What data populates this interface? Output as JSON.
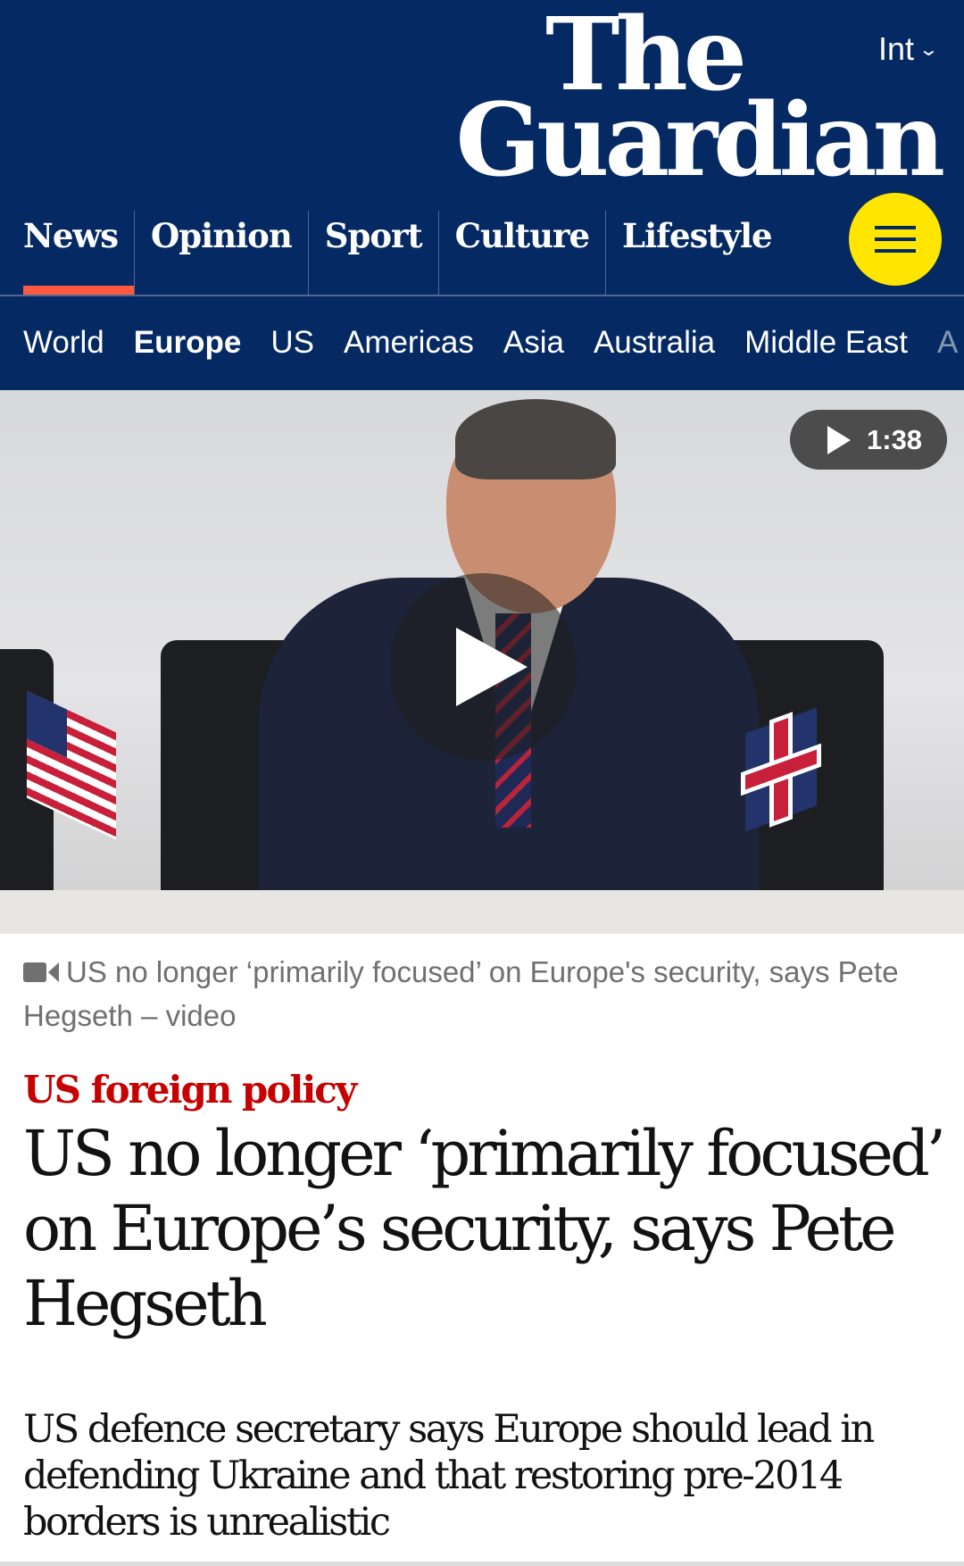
{
  "header": {
    "edition": "Int",
    "logo": "The Guardian",
    "logo_line1": "The",
    "logo_line2": "Guardian",
    "menu_icon": "hamburger-menu-icon",
    "pillars": [
      {
        "label": "News",
        "active": true
      },
      {
        "label": "Opinion"
      },
      {
        "label": "Sport"
      },
      {
        "label": "Culture"
      },
      {
        "label": "Lifestyle"
      }
    ],
    "subnav": [
      {
        "label": "World"
      },
      {
        "label": "Europe",
        "active": true
      },
      {
        "label": "US"
      },
      {
        "label": "Americas"
      },
      {
        "label": "Asia"
      },
      {
        "label": "Australia"
      },
      {
        "label": "Middle East"
      },
      {
        "label": "A"
      }
    ]
  },
  "media": {
    "duration": "1:38",
    "caption": "US no longer ‘primarily focused’ on Europe's security, says Pete Hegseth – video"
  },
  "article": {
    "kicker": "US foreign policy",
    "headline": "US no longer ‘primarily focused’ on Europe’s security, says Pete Hegseth",
    "standfirst": "US defence secretary says Europe should lead in defending Ukraine and that restoring pre-2014 borders is unrealistic"
  },
  "colors": {
    "brand": "#052962",
    "accent": "#ffe500",
    "news_red": "#c70000",
    "pillar_underline": "#ff5943"
  }
}
